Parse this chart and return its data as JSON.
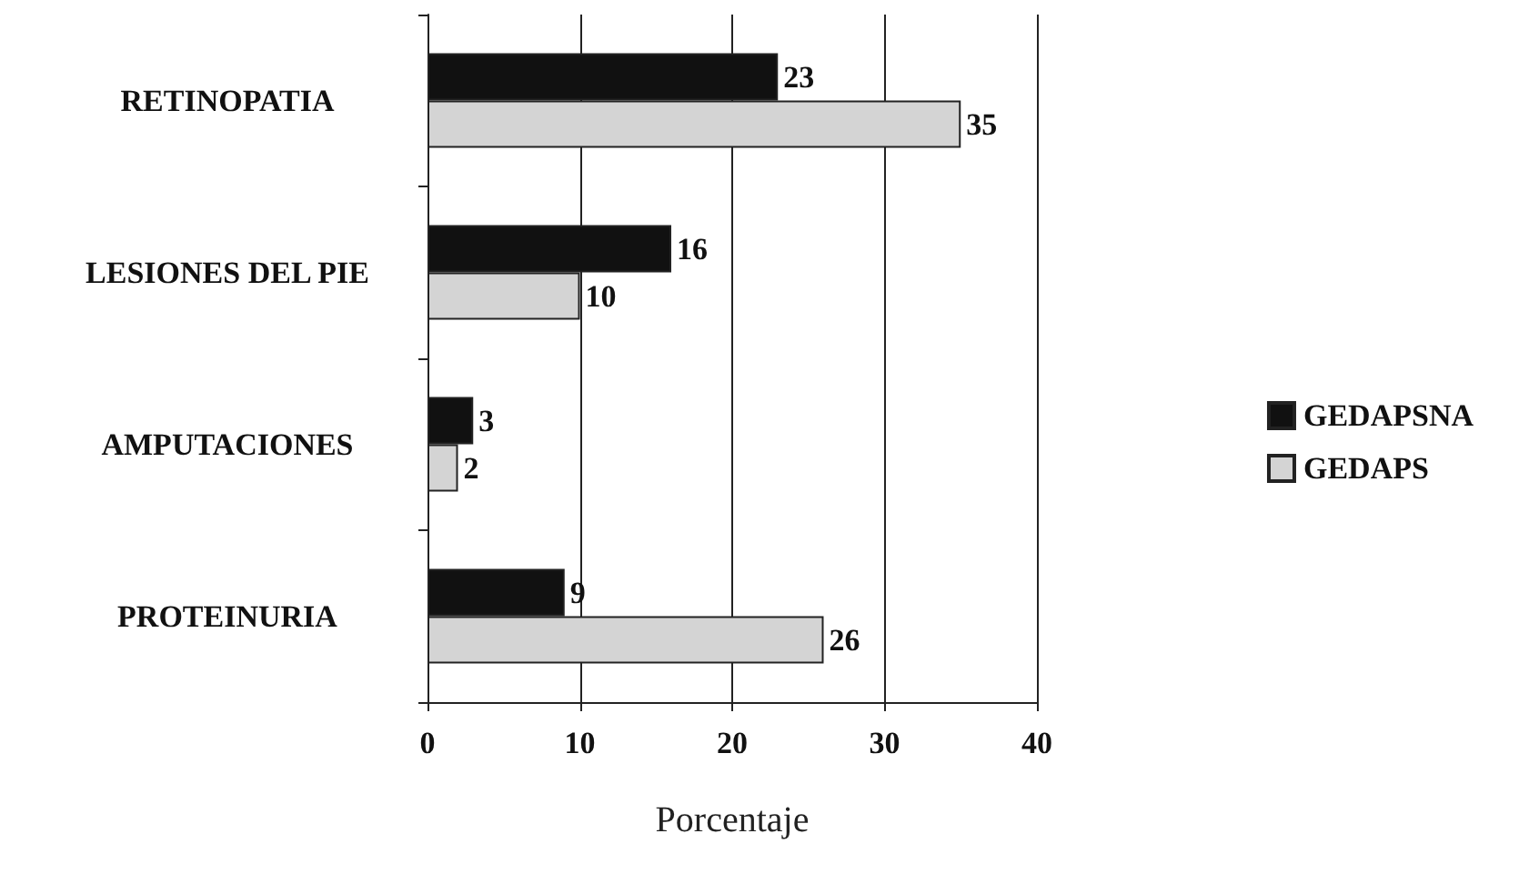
{
  "chart_data": {
    "type": "bar",
    "orientation": "horizontal",
    "xlabel": "Porcentaje",
    "categories": [
      "RETINOPATIA",
      "LESIONES DEL PIE",
      "AMPUTACIONES",
      "PROTEINURIA"
    ],
    "series": [
      {
        "name": "GEDAPSNA",
        "color": "#111111",
        "values": [
          23,
          16,
          3,
          9
        ]
      },
      {
        "name": "GEDAPS",
        "color": "#d4d4d4",
        "values": [
          35,
          10,
          2,
          26
        ]
      }
    ],
    "xlim": [
      0,
      40
    ],
    "xticks": [
      0,
      10,
      20,
      30,
      40
    ],
    "grid": "x",
    "legend": "right",
    "data_labels": true
  }
}
